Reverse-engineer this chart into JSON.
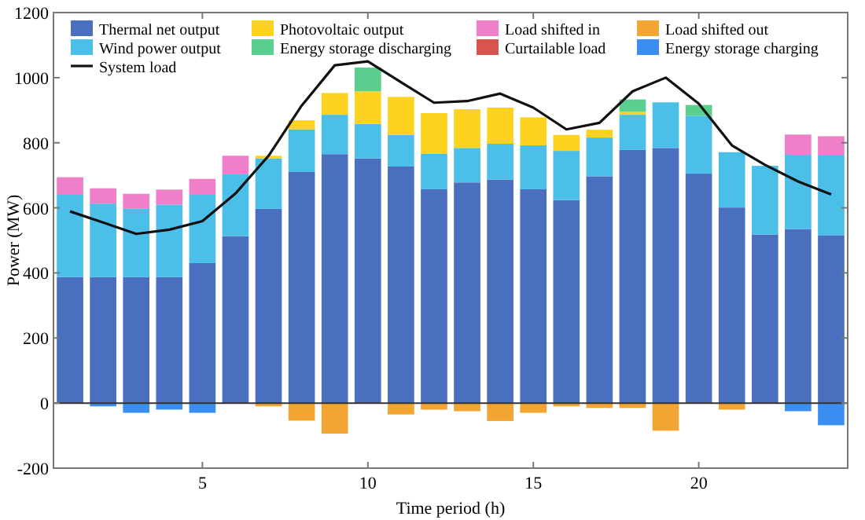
{
  "chart_data": {
    "type": "bar",
    "stacked": true,
    "xlabel": "Time period (h)",
    "ylabel": "Power (MW)",
    "x": [
      1,
      2,
      3,
      4,
      5,
      6,
      7,
      8,
      9,
      10,
      11,
      12,
      13,
      14,
      15,
      16,
      17,
      18,
      19,
      20,
      21,
      22,
      23,
      24
    ],
    "xlim": [
      0.5,
      24.5
    ],
    "xticks": [
      5,
      10,
      15,
      20
    ],
    "ylim": [
      -200,
      1200
    ],
    "yticks": [
      -200,
      0,
      200,
      400,
      600,
      800,
      1000,
      1200
    ],
    "legend": "top",
    "grid": false,
    "ref_lines": [
      {
        "axis": "y",
        "value": 0,
        "color": "#333333"
      }
    ],
    "series": [
      {
        "name": "Thermal net output",
        "color": "#4a6fbf",
        "values": [
          387,
          387,
          387,
          387,
          430,
          513,
          597,
          710,
          765,
          752,
          727,
          657,
          678,
          687,
          657,
          624,
          697,
          778,
          784,
          705,
          601,
          518,
          535,
          516
        ]
      },
      {
        "name": "Wind power output",
        "color": "#4bbfe8",
        "values": [
          253,
          226,
          210,
          223,
          210,
          190,
          155,
          131,
          121,
          106,
          97,
          109,
          106,
          110,
          135,
          151,
          119,
          108,
          140,
          178,
          170,
          211,
          228,
          247
        ]
      },
      {
        "name": "Photovoltaic output",
        "color": "#fdd320",
        "values": [
          0,
          0,
          0,
          0,
          0,
          0,
          8,
          28,
          67,
          100,
          117,
          125,
          119,
          111,
          86,
          49,
          24,
          9,
          0,
          0,
          0,
          0,
          0,
          0
        ]
      },
      {
        "name": "Energy storage discharging",
        "color": "#5bd08e",
        "values": [
          0,
          0,
          0,
          0,
          0,
          0,
          0,
          0,
          0,
          73,
          0,
          0,
          0,
          0,
          0,
          0,
          0,
          38,
          0,
          33,
          0,
          0,
          0,
          0
        ]
      },
      {
        "name": "Load shifted in",
        "color": "#ee7fc8",
        "values": [
          54,
          47,
          46,
          46,
          49,
          57,
          0,
          0,
          0,
          0,
          0,
          0,
          0,
          0,
          0,
          0,
          0,
          0,
          0,
          0,
          0,
          0,
          62,
          57
        ]
      },
      {
        "name": "Curtailable load",
        "color": "#d9534f",
        "values": [
          0,
          0,
          0,
          0,
          0,
          0,
          0,
          0,
          0,
          0,
          0,
          0,
          0,
          0,
          0,
          0,
          0,
          0,
          0,
          0,
          0,
          0,
          0,
          0
        ]
      },
      {
        "name": "Load shifted out",
        "color": "#f3a533",
        "values": [
          0,
          0,
          0,
          0,
          0,
          0,
          -10,
          -54,
          -94,
          0,
          -35,
          -20,
          -25,
          -55,
          -30,
          -10,
          -15,
          -15,
          -85,
          0,
          -20,
          0,
          0,
          0
        ]
      },
      {
        "name": "Energy storage charging",
        "color": "#3a8ef0",
        "values": [
          0,
          -10,
          -30,
          -20,
          -30,
          0,
          0,
          0,
          0,
          0,
          0,
          0,
          0,
          0,
          0,
          0,
          0,
          0,
          0,
          0,
          0,
          0,
          -25,
          -68
        ]
      },
      {
        "name": "System load",
        "type": "line",
        "color": "#111111",
        "values": [
          589,
          555,
          520,
          533,
          559,
          644,
          760,
          914,
          1038,
          1050,
          986,
          923,
          928,
          951,
          908,
          841,
          861,
          958,
          1000,
          920,
          792,
          732,
          681,
          641
        ]
      }
    ]
  }
}
